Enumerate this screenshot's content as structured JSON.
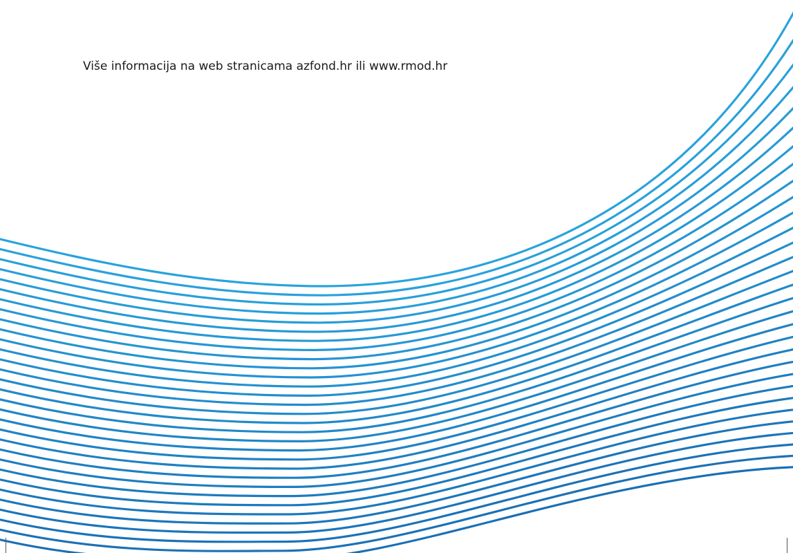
{
  "document": {
    "info_line": "Više informacija na web stranicama azfond.hr ili www.rmod.hr"
  },
  "artwork": {
    "description_icon": "curved-stripes-graphic",
    "colors": {
      "light": "#29a3dd",
      "dark": "#1a6fb5"
    },
    "stroke_count": 31
  }
}
